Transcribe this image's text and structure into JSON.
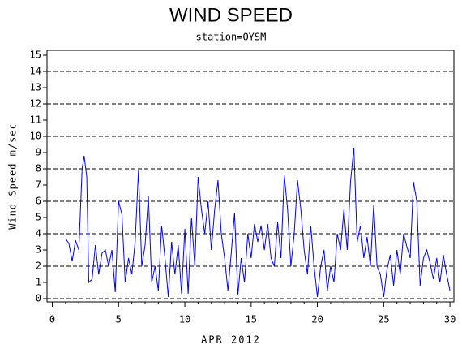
{
  "chart_data": {
    "type": "line",
    "title": "WIND SPEED",
    "subtitle": "station=OYSM",
    "ylabel": "Wind Speed m/sec",
    "xlabel": "APR 2012",
    "xlim": [
      -0.4,
      30.3
    ],
    "ylim": [
      -0.2,
      15.3
    ],
    "xticks": [
      0,
      5,
      10,
      15,
      20,
      25,
      30
    ],
    "xminorticks": [
      1,
      2,
      3,
      4,
      6,
      7,
      8,
      9,
      11,
      12,
      13,
      14,
      16,
      17,
      18,
      19,
      21,
      22,
      23,
      24,
      26,
      27,
      28,
      29
    ],
    "yticks": [
      0,
      1,
      2,
      3,
      4,
      5,
      6,
      7,
      8,
      9,
      10,
      11,
      12,
      13,
      14,
      15
    ],
    "ygrid": [
      0,
      2,
      4,
      6,
      8,
      10,
      12,
      14
    ],
    "series": [
      {
        "name": "Wind Speed",
        "color": "#0000ff",
        "x": [
          1.0,
          1.25,
          1.5,
          1.75,
          2.0,
          2.25,
          2.4,
          2.6,
          2.75,
          3.0,
          3.25,
          3.5,
          3.75,
          4.0,
          4.25,
          4.5,
          4.75,
          5.0,
          5.25,
          5.5,
          5.75,
          6.0,
          6.25,
          6.5,
          6.75,
          7.0,
          7.25,
          7.5,
          7.75,
          8.0,
          8.25,
          8.5,
          8.75,
          9.0,
          9.25,
          9.5,
          9.75,
          10.0,
          10.25,
          10.5,
          10.75,
          11.0,
          11.25,
          11.5,
          11.75,
          12.0,
          12.25,
          12.5,
          12.75,
          13.0,
          13.25,
          13.5,
          13.75,
          14.0,
          14.25,
          14.5,
          14.75,
          15.0,
          15.25,
          15.5,
          15.75,
          16.0,
          16.25,
          16.5,
          16.75,
          17.0,
          17.25,
          17.5,
          17.75,
          18.0,
          18.25,
          18.5,
          18.75,
          19.0,
          19.25,
          19.5,
          19.75,
          20.0,
          20.25,
          20.5,
          20.75,
          21.0,
          21.25,
          21.5,
          21.75,
          22.0,
          22.25,
          22.5,
          22.75,
          23.0,
          23.25,
          23.5,
          23.75,
          24.0,
          24.25,
          24.5,
          24.75,
          25.0,
          25.25,
          25.5,
          25.75,
          26.0,
          26.25,
          26.5,
          26.75,
          27.0,
          27.25,
          27.5,
          27.75,
          28.0,
          28.25,
          28.5,
          28.75,
          29.0,
          29.25,
          29.5,
          29.75,
          30.0
        ],
        "values": [
          3.7,
          3.4,
          2.3,
          3.6,
          3.0,
          8.0,
          8.8,
          7.5,
          1.0,
          1.2,
          3.3,
          1.5,
          2.8,
          3.0,
          2.0,
          3.0,
          0.4,
          6.0,
          5.2,
          1.0,
          2.5,
          1.5,
          3.5,
          7.9,
          2.0,
          3.3,
          6.3,
          1.0,
          2.0,
          0.5,
          4.5,
          2.5,
          0.1,
          3.5,
          1.5,
          3.3,
          0.3,
          4.3,
          0.3,
          5.0,
          2.0,
          7.5,
          5.5,
          4.0,
          6.0,
          3.0,
          5.5,
          7.3,
          4.0,
          2.5,
          0.5,
          2.8,
          5.3,
          0.2,
          2.5,
          1.0,
          4.0,
          2.5,
          4.6,
          3.5,
          4.5,
          3.0,
          4.6,
          2.5,
          2.0,
          4.7,
          2.5,
          7.6,
          5.5,
          2.0,
          4.0,
          7.3,
          5.5,
          3.0,
          1.5,
          4.5,
          2.0,
          0.1,
          2.0,
          3.0,
          0.5,
          2.0,
          1.0,
          4.0,
          3.0,
          5.5,
          3.0,
          7.2,
          9.3,
          3.5,
          4.5,
          2.5,
          3.8,
          2.0,
          5.8,
          2.0,
          1.5,
          0.1,
          1.8,
          2.7,
          0.8,
          3.0,
          1.5,
          4.0,
          3.2,
          2.5,
          7.2,
          6.0,
          0.8,
          2.5,
          3.0,
          2.2,
          1.2,
          2.5,
          1.0,
          2.7,
          1.5,
          0.5
        ]
      }
    ]
  }
}
